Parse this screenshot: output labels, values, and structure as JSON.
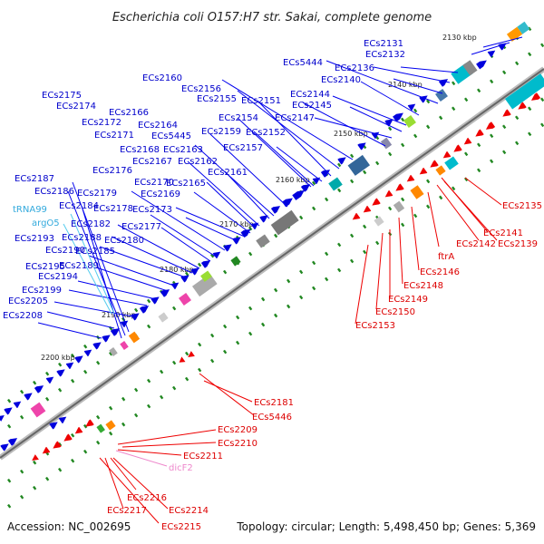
{
  "title": "Escherichia coli O157:H7 str. Sakai, complete genome",
  "accession": "Accession: NC_002695",
  "summary": "Topology: circular; Length: 5,498,450 bp; Genes: 5,369",
  "ruler": [
    "2130 kbp",
    "2140 kbp",
    "2150 kbp",
    "2160 kbp",
    "2170 kbp",
    "2180 kbp",
    "2190 kbp",
    "2200 kbp"
  ],
  "forward_labels": [
    "ECs2131",
    "ECs2132",
    "ECs2136",
    "ECs5444",
    "ECs2140",
    "ECs2144",
    "ECs2145",
    "ECs2147",
    "ECs2151",
    "ECs2160",
    "ECs2156",
    "ECs2155",
    "ECs2154",
    "ECs2159",
    "ECs2152",
    "ECs2157",
    "ECs2175",
    "ECs2174",
    "ECs2166",
    "ECs2172",
    "ECs2164",
    "ECs5445",
    "ECs2171",
    "ECs2168",
    "ECs2163",
    "ECs2167",
    "ECs2162",
    "ECs2176",
    "ECs2161",
    "ECs2170",
    "ECs2165",
    "ECs2187",
    "ECs2179",
    "ECs2169",
    "ECs2186",
    "ECs2184",
    "ECs2178",
    "ECs2173",
    "tRNA99",
    "ECs2182",
    "ECs2177",
    "argO5",
    "ECs2193",
    "ECs2188",
    "ECs2180",
    "ECs2190",
    "ECs2185",
    "ECs2195",
    "ECs2189",
    "ECs2194",
    "ECs2199",
    "ECs2205",
    "ECs2208"
  ],
  "reverse_labels": [
    "ECs2135",
    "ECs2141",
    "ECs2142",
    "ECs2139",
    "ftrA",
    "ECs2146",
    "ECs2148",
    "ECs2149",
    "ECs2150",
    "ECs2153",
    "ECs2181",
    "ECs5446",
    "ECs2209",
    "ECs2210",
    "ECs2211",
    "dicF2",
    "ECs2216",
    "ECs2214",
    "ECs2217",
    "ECs2215"
  ],
  "colors": {
    "forward_gene": "#0000dd",
    "reverse_gene": "#ee0000",
    "rna_label": "#33aadd",
    "pseudo_label": "#ee88cc",
    "ruler_tick": "#228822",
    "backbone": "#888888"
  }
}
